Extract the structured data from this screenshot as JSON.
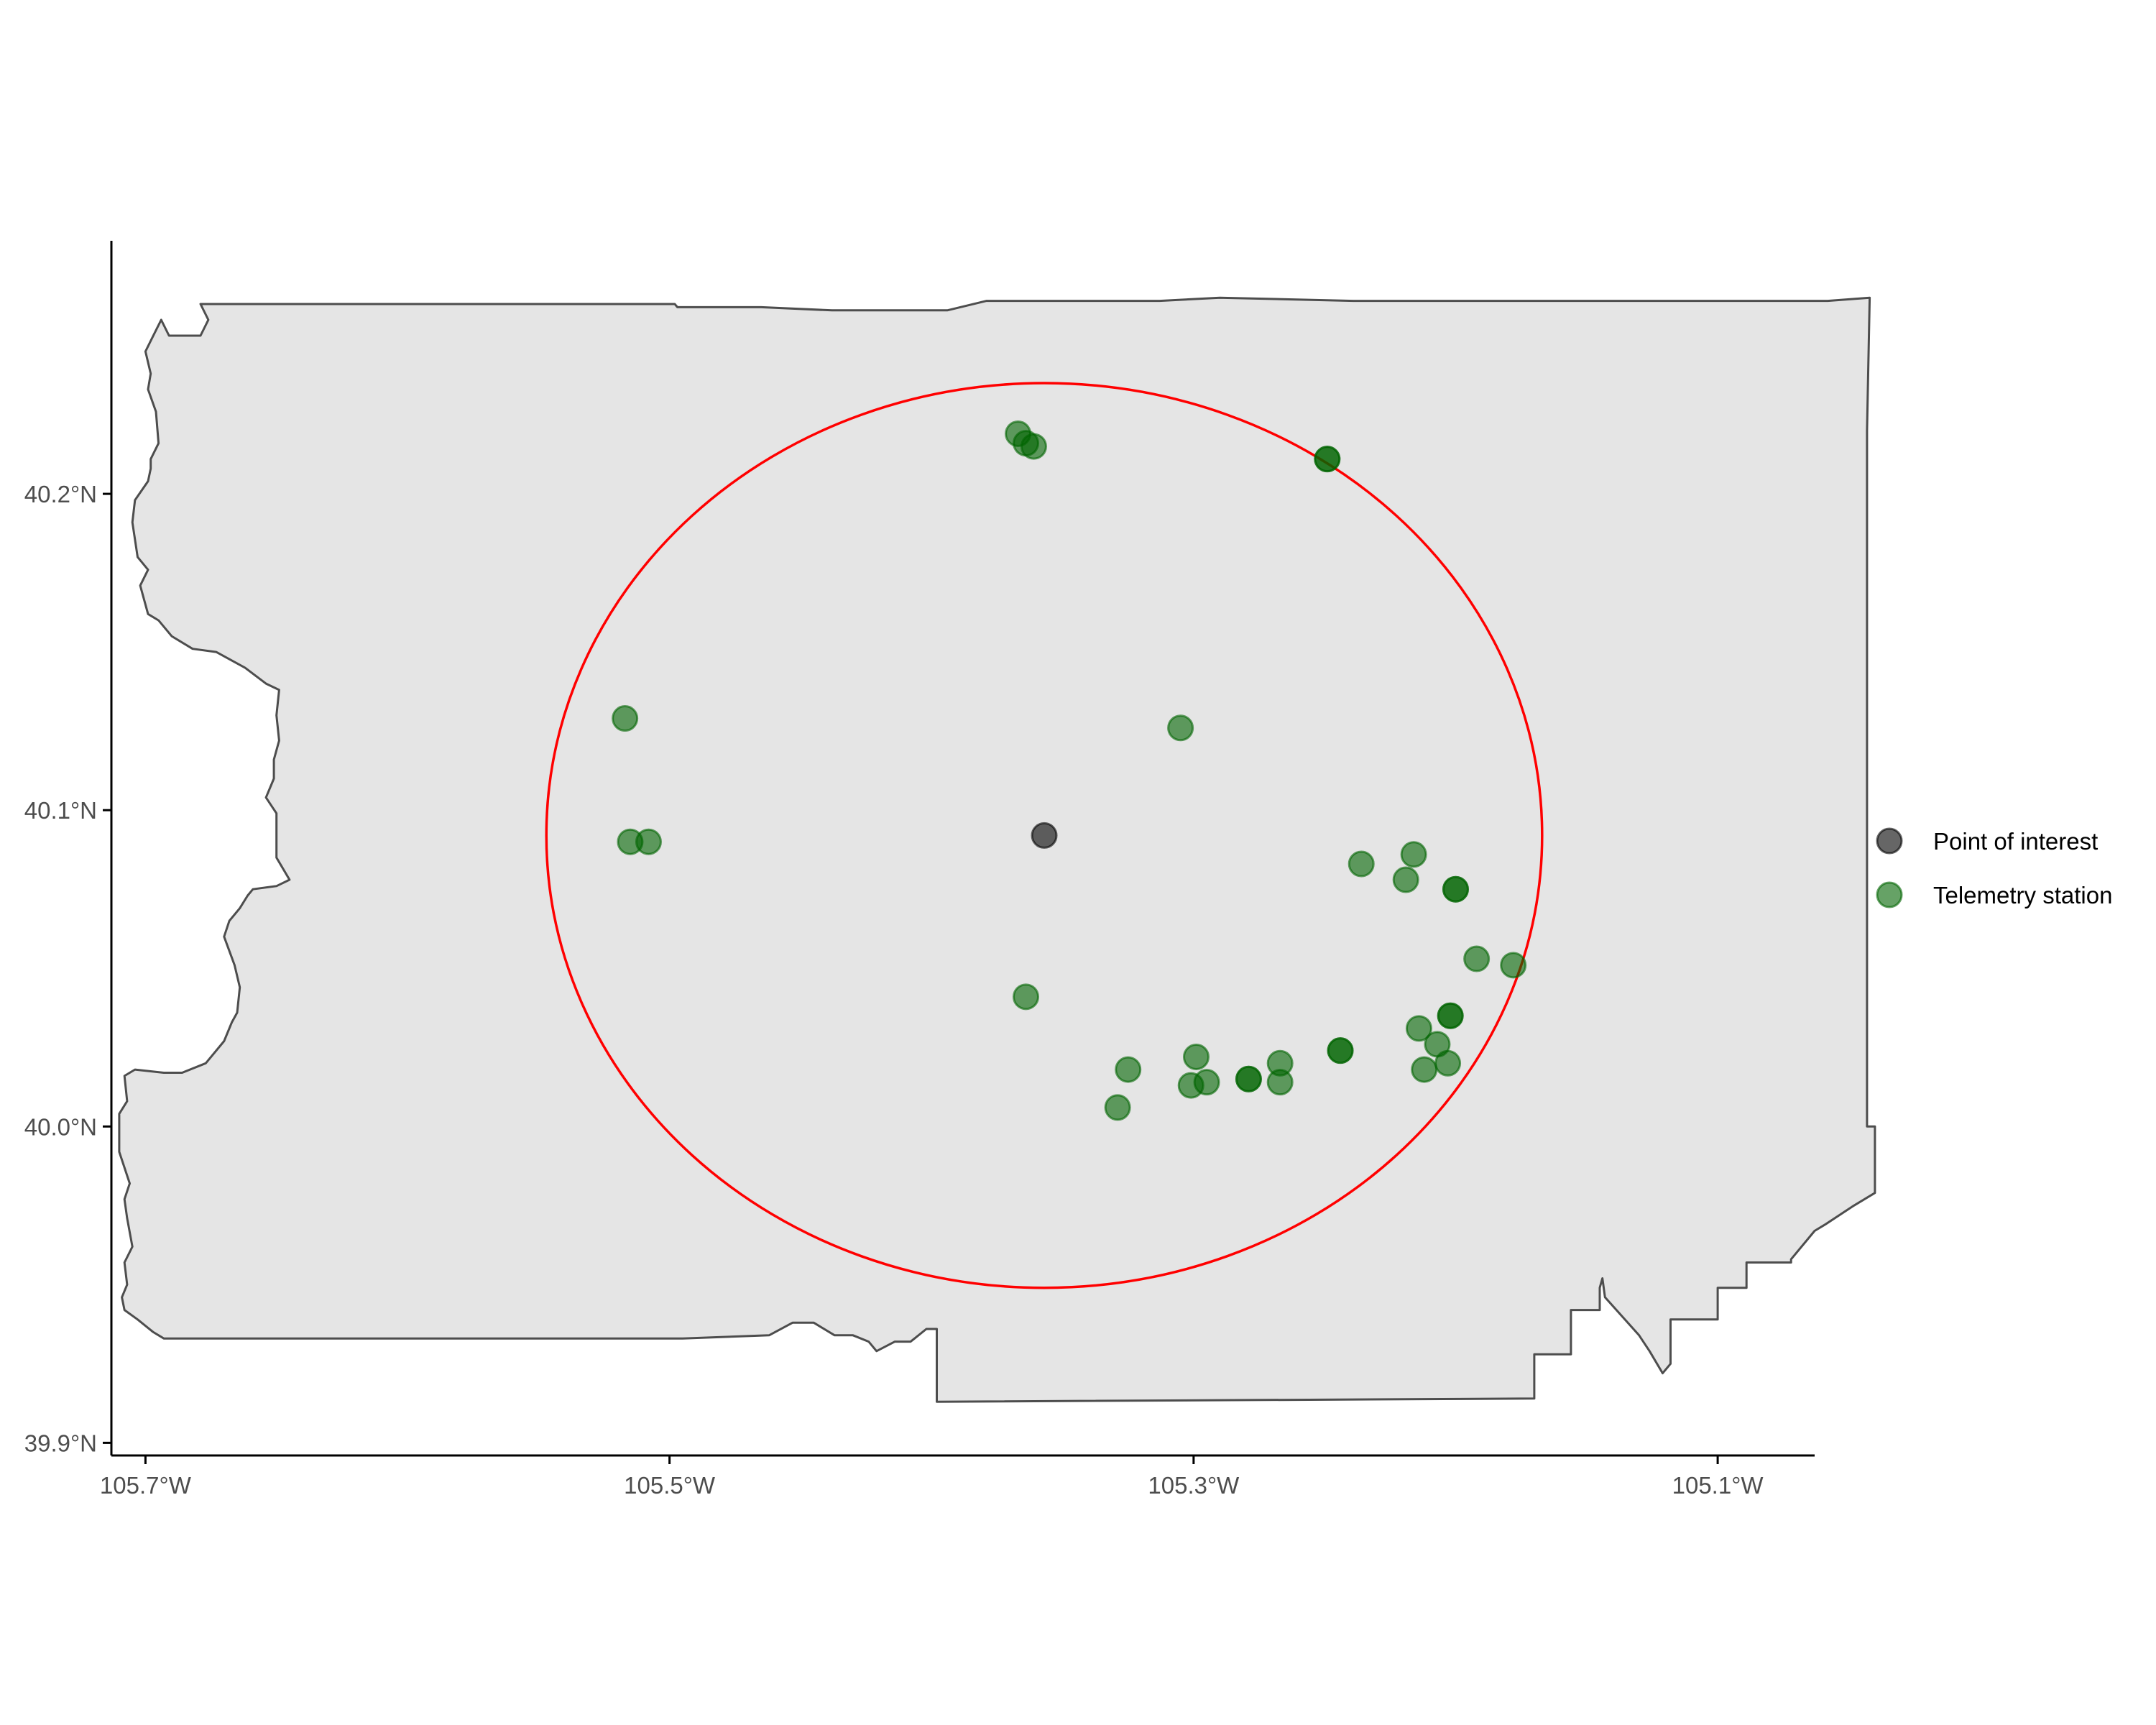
{
  "chart_data": {
    "type": "scatter",
    "title": "",
    "xlabel": "",
    "ylabel": "",
    "xlim": [
      -105.713,
      -105.063
    ],
    "ylim": [
      39.896,
      40.28
    ],
    "x_ticks": [
      {
        "value": -105.7,
        "label": "105.7°W"
      },
      {
        "value": -105.5,
        "label": "105.5°W"
      },
      {
        "value": -105.3,
        "label": "105.3°W"
      },
      {
        "value": -105.1,
        "label": "105.1°W"
      }
    ],
    "y_ticks": [
      {
        "value": 39.9,
        "label": "39.9°N"
      },
      {
        "value": 40.0,
        "label": "40.0°N"
      },
      {
        "value": 40.1,
        "label": "40.1°N"
      },
      {
        "value": 40.2,
        "label": "40.2°N"
      }
    ],
    "grid": false,
    "legend_position": "right",
    "boundary": {
      "fill": "#e5e5e5",
      "stroke": "#4d4d4d",
      "outline": [
        [
          -105.652,
          40.26
        ],
        [
          -105.605,
          40.26
        ],
        [
          -105.558,
          40.26
        ],
        [
          -105.498,
          40.26
        ],
        [
          -105.497,
          40.259
        ],
        [
          -105.465,
          40.259
        ],
        [
          -105.438,
          40.258
        ],
        [
          -105.408,
          40.258
        ],
        [
          -105.396,
          40.258
        ],
        [
          -105.394,
          40.258
        ],
        [
          -105.379,
          40.261
        ],
        [
          -105.363,
          40.261
        ],
        [
          -105.348,
          40.261
        ],
        [
          -105.313,
          40.261
        ],
        [
          -105.29,
          40.262
        ],
        [
          -105.239,
          40.261
        ],
        [
          -105.218,
          40.261
        ],
        [
          -105.139,
          40.261
        ],
        [
          -105.058,
          40.261
        ],
        [
          -105.042,
          40.262
        ],
        [
          -105.043,
          40.22
        ],
        [
          -105.043,
          40.0
        ],
        [
          -105.04,
          40.0
        ],
        [
          -105.04,
          39.979
        ],
        [
          -105.048,
          39.975
        ],
        [
          -105.059,
          39.969
        ],
        [
          -105.063,
          39.967
        ],
        [
          -105.072,
          39.958
        ],
        [
          -105.072,
          39.957
        ],
        [
          -105.089,
          39.957
        ],
        [
          -105.089,
          39.949
        ],
        [
          -105.1,
          39.949
        ],
        [
          -105.1,
          39.939
        ],
        [
          -105.118,
          39.939
        ],
        [
          -105.118,
          39.925
        ],
        [
          -105.121,
          39.922
        ],
        [
          -105.126,
          39.929
        ],
        [
          -105.13,
          39.934
        ],
        [
          -105.143,
          39.946
        ],
        [
          -105.144,
          39.952
        ],
        [
          -105.145,
          39.949
        ],
        [
          -105.145,
          39.942
        ],
        [
          -105.156,
          39.942
        ],
        [
          -105.156,
          39.928
        ],
        [
          -105.17,
          39.928
        ],
        [
          -105.17,
          39.914
        ],
        [
          -105.398,
          39.913
        ],
        [
          -105.398,
          39.936
        ],
        [
          -105.402,
          39.936
        ],
        [
          -105.408,
          39.932
        ],
        [
          -105.414,
          39.932
        ],
        [
          -105.421,
          39.929
        ],
        [
          -105.424,
          39.932
        ],
        [
          -105.43,
          39.934
        ],
        [
          -105.437,
          39.934
        ],
        [
          -105.445,
          39.938
        ],
        [
          -105.453,
          39.938
        ],
        [
          -105.462,
          39.934
        ],
        [
          -105.495,
          39.933
        ],
        [
          -105.545,
          39.933
        ],
        [
          -105.595,
          39.933
        ],
        [
          -105.645,
          39.933
        ],
        [
          -105.693,
          39.933
        ],
        [
          -105.697,
          39.935
        ],
        [
          -105.703,
          39.939
        ],
        [
          -105.708,
          39.942
        ],
        [
          -105.709,
          39.946
        ],
        [
          -105.707,
          39.95
        ],
        [
          -105.708,
          39.957
        ],
        [
          -105.705,
          39.962
        ],
        [
          -105.707,
          39.971
        ],
        [
          -105.708,
          39.977
        ],
        [
          -105.706,
          39.982
        ],
        [
          -105.71,
          39.992
        ],
        [
          -105.71,
          40.004
        ],
        [
          -105.707,
          40.008
        ],
        [
          -105.708,
          40.016
        ],
        [
          -105.704,
          40.018
        ],
        [
          -105.693,
          40.017
        ],
        [
          -105.686,
          40.017
        ],
        [
          -105.677,
          40.02
        ],
        [
          -105.67,
          40.027
        ],
        [
          -105.667,
          40.033
        ],
        [
          -105.665,
          40.036
        ],
        [
          -105.664,
          40.044
        ],
        [
          -105.666,
          40.051
        ],
        [
          -105.67,
          40.06
        ],
        [
          -105.668,
          40.065
        ],
        [
          -105.664,
          40.069
        ],
        [
          -105.661,
          40.073
        ],
        [
          -105.659,
          40.075
        ],
        [
          -105.65,
          40.076
        ],
        [
          -105.645,
          40.078
        ],
        [
          -105.65,
          40.085
        ],
        [
          -105.65,
          40.099
        ],
        [
          -105.654,
          40.104
        ],
        [
          -105.651,
          40.11
        ],
        [
          -105.651,
          40.116
        ],
        [
          -105.649,
          40.122
        ],
        [
          -105.65,
          40.13
        ],
        [
          -105.649,
          40.138
        ],
        [
          -105.654,
          40.14
        ],
        [
          -105.662,
          40.145
        ],
        [
          -105.673,
          40.15
        ],
        [
          -105.682,
          40.151
        ],
        [
          -105.69,
          40.155
        ],
        [
          -105.695,
          40.16
        ],
        [
          -105.699,
          40.162
        ],
        [
          -105.702,
          40.171
        ],
        [
          -105.699,
          40.176
        ],
        [
          -105.703,
          40.18
        ],
        [
          -105.705,
          40.191
        ],
        [
          -105.704,
          40.198
        ],
        [
          -105.699,
          40.204
        ],
        [
          -105.698,
          40.208
        ],
        [
          -105.698,
          40.211
        ],
        [
          -105.695,
          40.216
        ],
        [
          -105.696,
          40.226
        ],
        [
          -105.699,
          40.233
        ],
        [
          -105.698,
          40.238
        ],
        [
          -105.7,
          40.245
        ],
        [
          -105.697,
          40.25
        ],
        [
          -105.694,
          40.255
        ],
        [
          -105.691,
          40.25
        ],
        [
          -105.679,
          40.25
        ],
        [
          -105.676,
          40.255
        ],
        [
          -105.679,
          40.26
        ],
        [
          -105.674,
          40.26
        ],
        [
          -105.652,
          40.26
        ]
      ]
    },
    "buffer_circle": {
      "center": [
        -105.357,
        40.092
      ],
      "radius_deg_lon": 0.19,
      "radius_deg_lat": 0.143,
      "color": "#ff0000"
    },
    "series": [
      {
        "name": "Point of interest",
        "color": "#000000",
        "opacity": 0.6,
        "points": [
          [
            -105.357,
            40.092
          ]
        ]
      },
      {
        "name": "Telemetry station",
        "color": "#006400",
        "opacity": 0.6,
        "points": [
          [
            -105.367,
            40.219
          ],
          [
            -105.364,
            40.216
          ],
          [
            -105.361,
            40.215
          ],
          [
            -105.249,
            40.211
          ],
          [
            -105.249,
            40.211
          ],
          [
            -105.517,
            40.129
          ],
          [
            -105.305,
            40.126
          ],
          [
            -105.515,
            40.09
          ],
          [
            -105.508,
            40.09
          ],
          [
            -105.236,
            40.083
          ],
          [
            -105.219,
            40.078
          ],
          [
            -105.216,
            40.086
          ],
          [
            -105.2,
            40.075
          ],
          [
            -105.2,
            40.075
          ],
          [
            -105.192,
            40.053
          ],
          [
            -105.178,
            40.051
          ],
          [
            -105.364,
            40.041
          ],
          [
            -105.202,
            40.035
          ],
          [
            -105.202,
            40.035
          ],
          [
            -105.214,
            40.031
          ],
          [
            -105.207,
            40.026
          ],
          [
            -105.244,
            40.024
          ],
          [
            -105.244,
            40.024
          ],
          [
            -105.267,
            40.02
          ],
          [
            -105.267,
            40.014
          ],
          [
            -105.212,
            40.018
          ],
          [
            -105.203,
            40.02
          ],
          [
            -105.325,
            40.018
          ],
          [
            -105.329,
            40.006
          ],
          [
            -105.299,
            40.022
          ],
          [
            -105.301,
            40.013
          ],
          [
            -105.295,
            40.014
          ],
          [
            -105.279,
            40.015
          ],
          [
            -105.279,
            40.015
          ]
        ]
      }
    ]
  }
}
